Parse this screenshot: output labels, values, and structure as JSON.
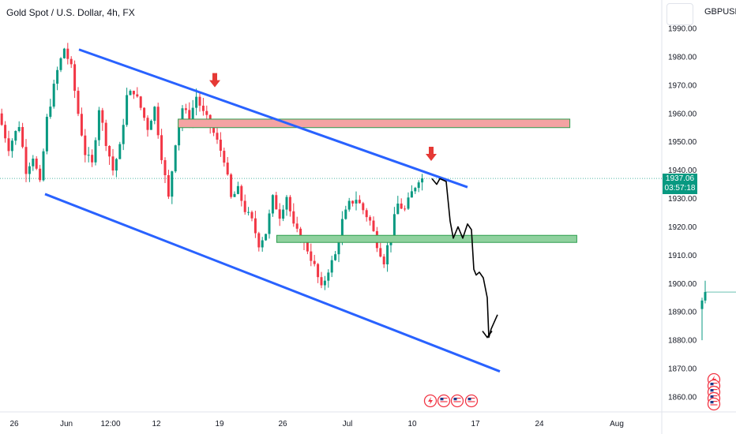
{
  "header": {
    "title": "Gold Spot / U.S. Dollar, 4h, FX",
    "compare_symbol": "GBPUSD,"
  },
  "price_badge": {
    "price": "1937.06",
    "countdown": "03:57:18",
    "color": "#089981"
  },
  "colors": {
    "up": "#089981",
    "down": "#f23645",
    "channel": "#2962ff",
    "resistance_fill": "#f4a3a3",
    "support_fill": "#8fd19e",
    "zone_border": "#2e9e4f",
    "arrow": "#e53935"
  },
  "chart_data": {
    "type": "candlestick",
    "yticks": [
      1860,
      1870,
      1880,
      1890,
      1900,
      1910,
      1920,
      1930,
      1940,
      1950,
      1960,
      1970,
      1980,
      1990
    ],
    "ytick_labels": [
      "1860.00",
      "1870.00",
      "1880.00",
      "1890.00",
      "1900.00",
      "1910.00",
      "1920.00",
      "1930.00",
      "1940.00",
      "1950.00",
      "1960.00",
      "1970.00",
      "1980.00",
      "1990.00"
    ],
    "ylim": [
      1855,
      1997
    ],
    "xtick_labels": [
      "26",
      "Jun",
      "12:00",
      "12",
      "19",
      "26",
      "Jul",
      "10",
      "17",
      "24",
      "Aug"
    ],
    "current_price": 1937.06,
    "path": [
      [
        0,
        1960
      ],
      [
        3,
        1948
      ],
      [
        6,
        1956
      ],
      [
        8,
        1940
      ],
      [
        10,
        1945
      ],
      [
        12,
        1935
      ],
      [
        14,
        1958
      ],
      [
        17,
        1975
      ],
      [
        19,
        1983
      ],
      [
        21,
        1976
      ],
      [
        23,
        1960
      ],
      [
        25,
        1946
      ],
      [
        27,
        1942
      ],
      [
        29,
        1962
      ],
      [
        31,
        1950
      ],
      [
        33,
        1940
      ],
      [
        35,
        1948
      ],
      [
        37,
        1966
      ],
      [
        39,
        1968
      ],
      [
        41,
        1962
      ],
      [
        43,
        1955
      ],
      [
        45,
        1962
      ],
      [
        47,
        1945
      ],
      [
        49,
        1930
      ],
      [
        51,
        1950
      ],
      [
        53,
        1962
      ],
      [
        55,
        1958
      ],
      [
        57,
        1966
      ],
      [
        59,
        1960
      ],
      [
        61,
        1956
      ],
      [
        63,
        1950
      ],
      [
        65,
        1944
      ],
      [
        67,
        1930
      ],
      [
        69,
        1933
      ],
      [
        71,
        1926
      ],
      [
        73,
        1922
      ],
      [
        75,
        1914
      ],
      [
        77,
        1918
      ],
      [
        79,
        1930
      ],
      [
        81,
        1924
      ],
      [
        83,
        1931
      ],
      [
        85,
        1920
      ],
      [
        87,
        1916
      ],
      [
        89,
        1912
      ],
      [
        91,
        1906
      ],
      [
        93,
        1898
      ],
      [
        95,
        1905
      ],
      [
        97,
        1910
      ],
      [
        99,
        1922
      ],
      [
        101,
        1928
      ],
      [
        103,
        1930
      ],
      [
        105,
        1926
      ],
      [
        107,
        1922
      ],
      [
        109,
        1914
      ],
      [
        111,
        1908
      ],
      [
        113,
        1918
      ],
      [
        115,
        1928
      ],
      [
        117,
        1926
      ],
      [
        119,
        1932
      ],
      [
        121,
        1937
      ]
    ],
    "channel_upper": [
      [
        24,
        1982
      ],
      [
        147,
        1934
      ]
    ],
    "channel_lower": [
      [
        13,
        1931
      ],
      [
        157,
        1869
      ]
    ],
    "resistance_zone": {
      "y_low": 1955,
      "y_high": 1958,
      "x_start": 54,
      "x_end": 164
    },
    "support_zone": {
      "y_low": 1914.5,
      "y_high": 1917,
      "x_start": 86,
      "x_end": 166
    },
    "arrow_markers": [
      [
        67,
        1967
      ],
      [
        134,
        1941
      ]
    ],
    "projected_path": [
      [
        136,
        1937
      ],
      [
        138,
        1935
      ],
      [
        139,
        1937
      ],
      [
        141,
        1936
      ],
      [
        142,
        1922
      ],
      [
        143,
        1916
      ],
      [
        144,
        1920
      ],
      [
        145,
        1916
      ],
      [
        146,
        1921
      ],
      [
        147,
        1919
      ],
      [
        148,
        1905
      ],
      [
        149,
        1903
      ],
      [
        150,
        1904
      ],
      [
        151,
        1902
      ],
      [
        152,
        1895
      ],
      [
        152.5,
        1881
      ],
      [
        153,
        1884
      ],
      [
        154,
        1889
      ]
    ],
    "side_series": [
      [
        1918,
        1892
      ],
      [
        1922,
        1897
      ]
    ],
    "n_bars": 122
  }
}
